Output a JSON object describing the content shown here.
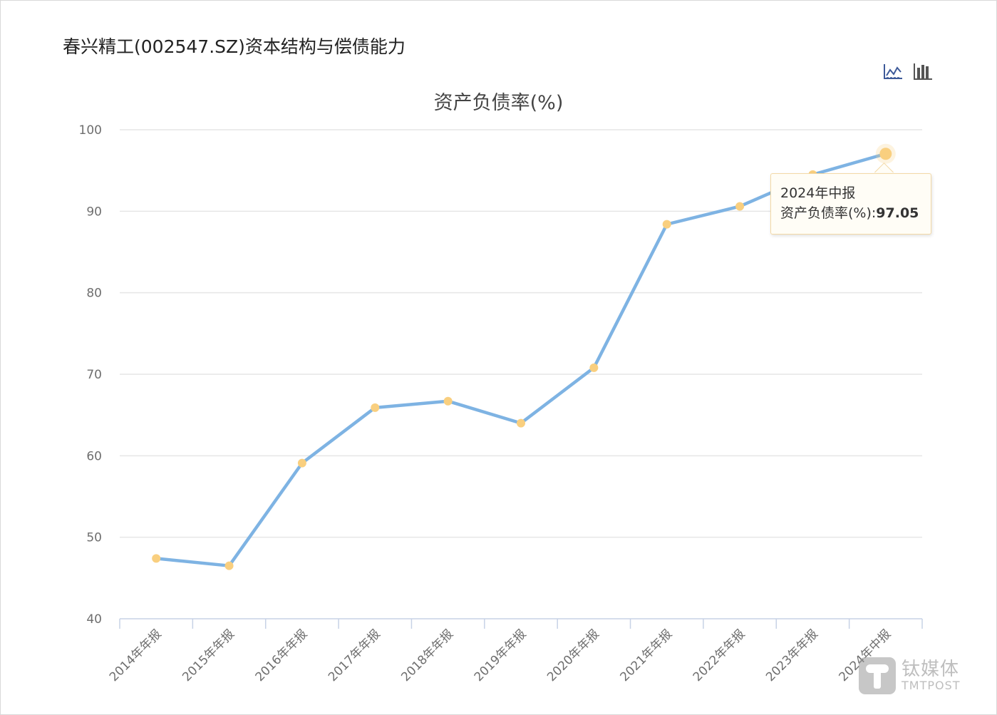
{
  "page": {
    "title": "春兴精工(002547.SZ)资本结构与偿债能力"
  },
  "toolbox": {
    "items": [
      {
        "name": "line-chart-icon",
        "label": "折线图",
        "active": true,
        "color": "#3d5a99"
      },
      {
        "name": "bar-chart-icon",
        "label": "柱状图",
        "active": false,
        "color": "#555555"
      }
    ]
  },
  "tooltip": {
    "category": "2024年中报",
    "series_label": "资产负债率(%):",
    "value": "97.05"
  },
  "watermark": {
    "cn": "钛媒体",
    "en": "TMTPOST"
  },
  "colors": {
    "line": "#7eb3e3",
    "point": "#f9cf7f",
    "grid": "#e6e6e6",
    "axis": "#c7d2e6"
  },
  "chart_data": {
    "type": "line",
    "title": "资产负债率(%)",
    "xlabel": "",
    "ylabel": "",
    "categories": [
      "2014年年报",
      "2015年年报",
      "2016年年报",
      "2017年年报",
      "2018年年报",
      "2019年年报",
      "2020年年报",
      "2021年年报",
      "2022年年报",
      "2023年年报",
      "2024年中报"
    ],
    "series": [
      {
        "name": "资产负债率(%)",
        "values": [
          47.4,
          46.5,
          59.1,
          65.9,
          66.7,
          64.0,
          70.8,
          88.4,
          90.6,
          94.5,
          97.05
        ]
      }
    ],
    "ylim": [
      40,
      100
    ],
    "yticks": [
      40,
      50,
      60,
      70,
      80,
      90,
      100
    ],
    "grid": true,
    "legend": "none",
    "highlighted_index": 10,
    "x_label_rotation": -45
  }
}
